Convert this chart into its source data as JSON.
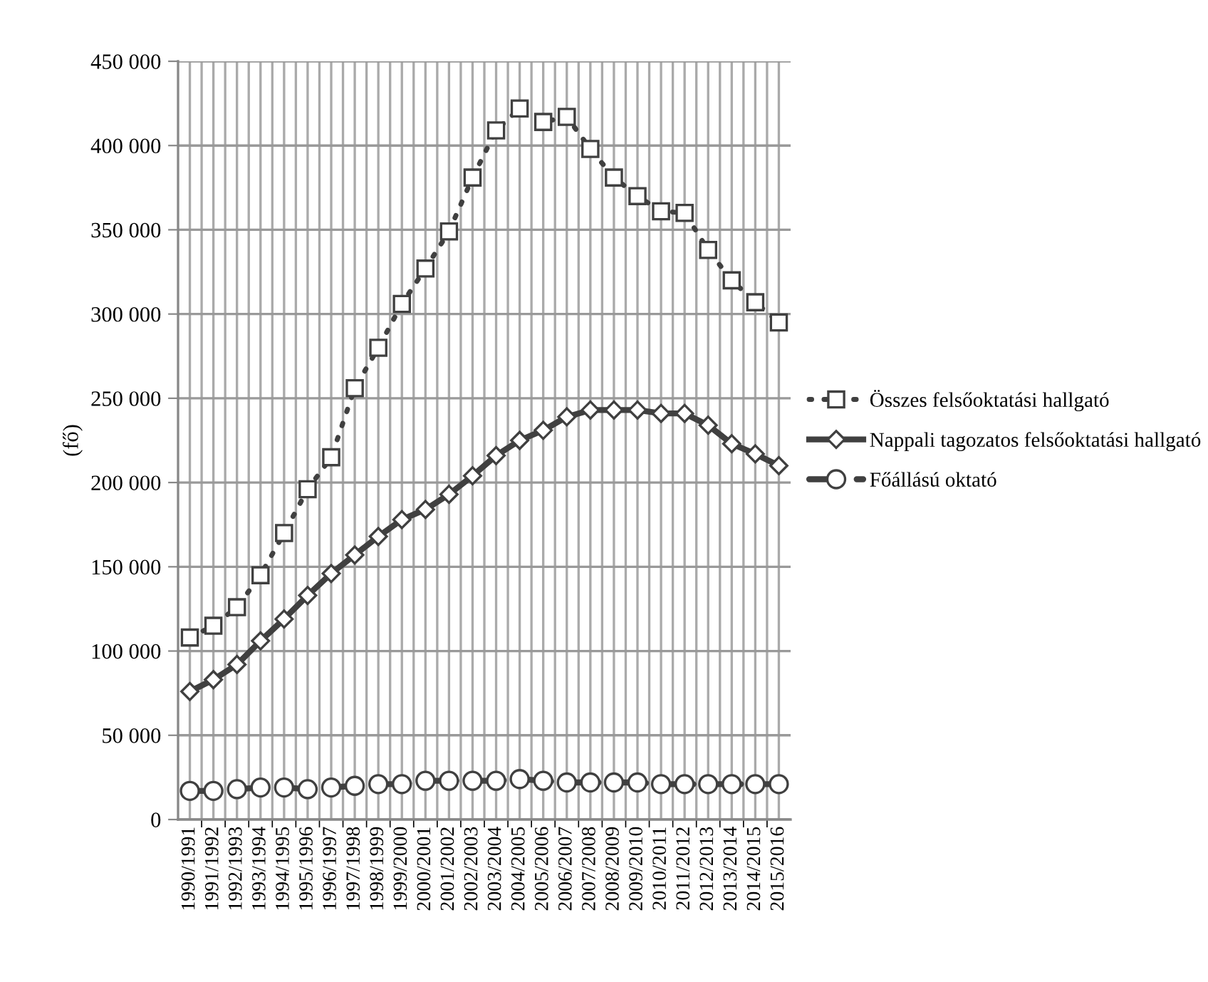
{
  "chart_data": {
    "type": "line",
    "ylabel": "(fő)",
    "categories": [
      "1990/1991",
      "1991/1992",
      "1992/1993",
      "1993/1994",
      "1994/1995",
      "1995/1996",
      "1996/1997",
      "1997/1998",
      "1998/1999",
      "1999/2000",
      "2000/2001",
      "2001/2002",
      "2002/2003",
      "2003/2004",
      "2004/2005",
      "2005/2006",
      "2006/2007",
      "2007/2008",
      "2008/2009",
      "2009/2010",
      "2010/2011",
      "2011/2012",
      "2012/2013",
      "2013/2014",
      "2014/2015",
      "2015/2016"
    ],
    "series": [
      {
        "name": "Összes felsőoktatási hallgató",
        "color": "#404040",
        "marker": "square",
        "line_style": "dotted",
        "values": [
          108000,
          115000,
          126000,
          145000,
          170000,
          196000,
          215000,
          256000,
          280000,
          306000,
          327000,
          349000,
          381000,
          409000,
          422000,
          414000,
          417000,
          398000,
          381000,
          370000,
          361000,
          360000,
          338000,
          320000,
          307000,
          295000
        ]
      },
      {
        "name": "Nappali tagozatos felsőoktatási hallgató",
        "color": "#404040",
        "marker": "diamond",
        "line_style": "solid",
        "values": [
          76000,
          83000,
          92000,
          106000,
          119000,
          133000,
          146000,
          157000,
          168000,
          178000,
          184000,
          193000,
          204000,
          216000,
          225000,
          231000,
          239000,
          243000,
          243000,
          243000,
          241000,
          241000,
          234000,
          223000,
          217000,
          210000
        ]
      },
      {
        "name": "Főállású oktató",
        "color": "#404040",
        "marker": "circle",
        "line_style": "dashed",
        "values": [
          17000,
          17000,
          18000,
          19000,
          19000,
          18000,
          19000,
          20000,
          21000,
          21000,
          23000,
          23000,
          23000,
          23000,
          24000,
          23000,
          22000,
          22000,
          22000,
          22000,
          21000,
          21000,
          21000,
          21000,
          21000,
          21000
        ]
      }
    ],
    "ylim": [
      0,
      450000
    ],
    "yticks": [
      {
        "value": 0,
        "label": "0"
      },
      {
        "value": 50000,
        "label": "50 000"
      },
      {
        "value": 100000,
        "label": "100 000"
      },
      {
        "value": 150000,
        "label": "150 000"
      },
      {
        "value": 200000,
        "label": "200 000"
      },
      {
        "value": 250000,
        "label": "250 000"
      },
      {
        "value": 300000,
        "label": "300 000"
      },
      {
        "value": 350000,
        "label": "350 000"
      },
      {
        "value": 400000,
        "label": "400 000"
      },
      {
        "value": 450000,
        "label": "450 000"
      }
    ],
    "grid": true,
    "legend": "right"
  }
}
